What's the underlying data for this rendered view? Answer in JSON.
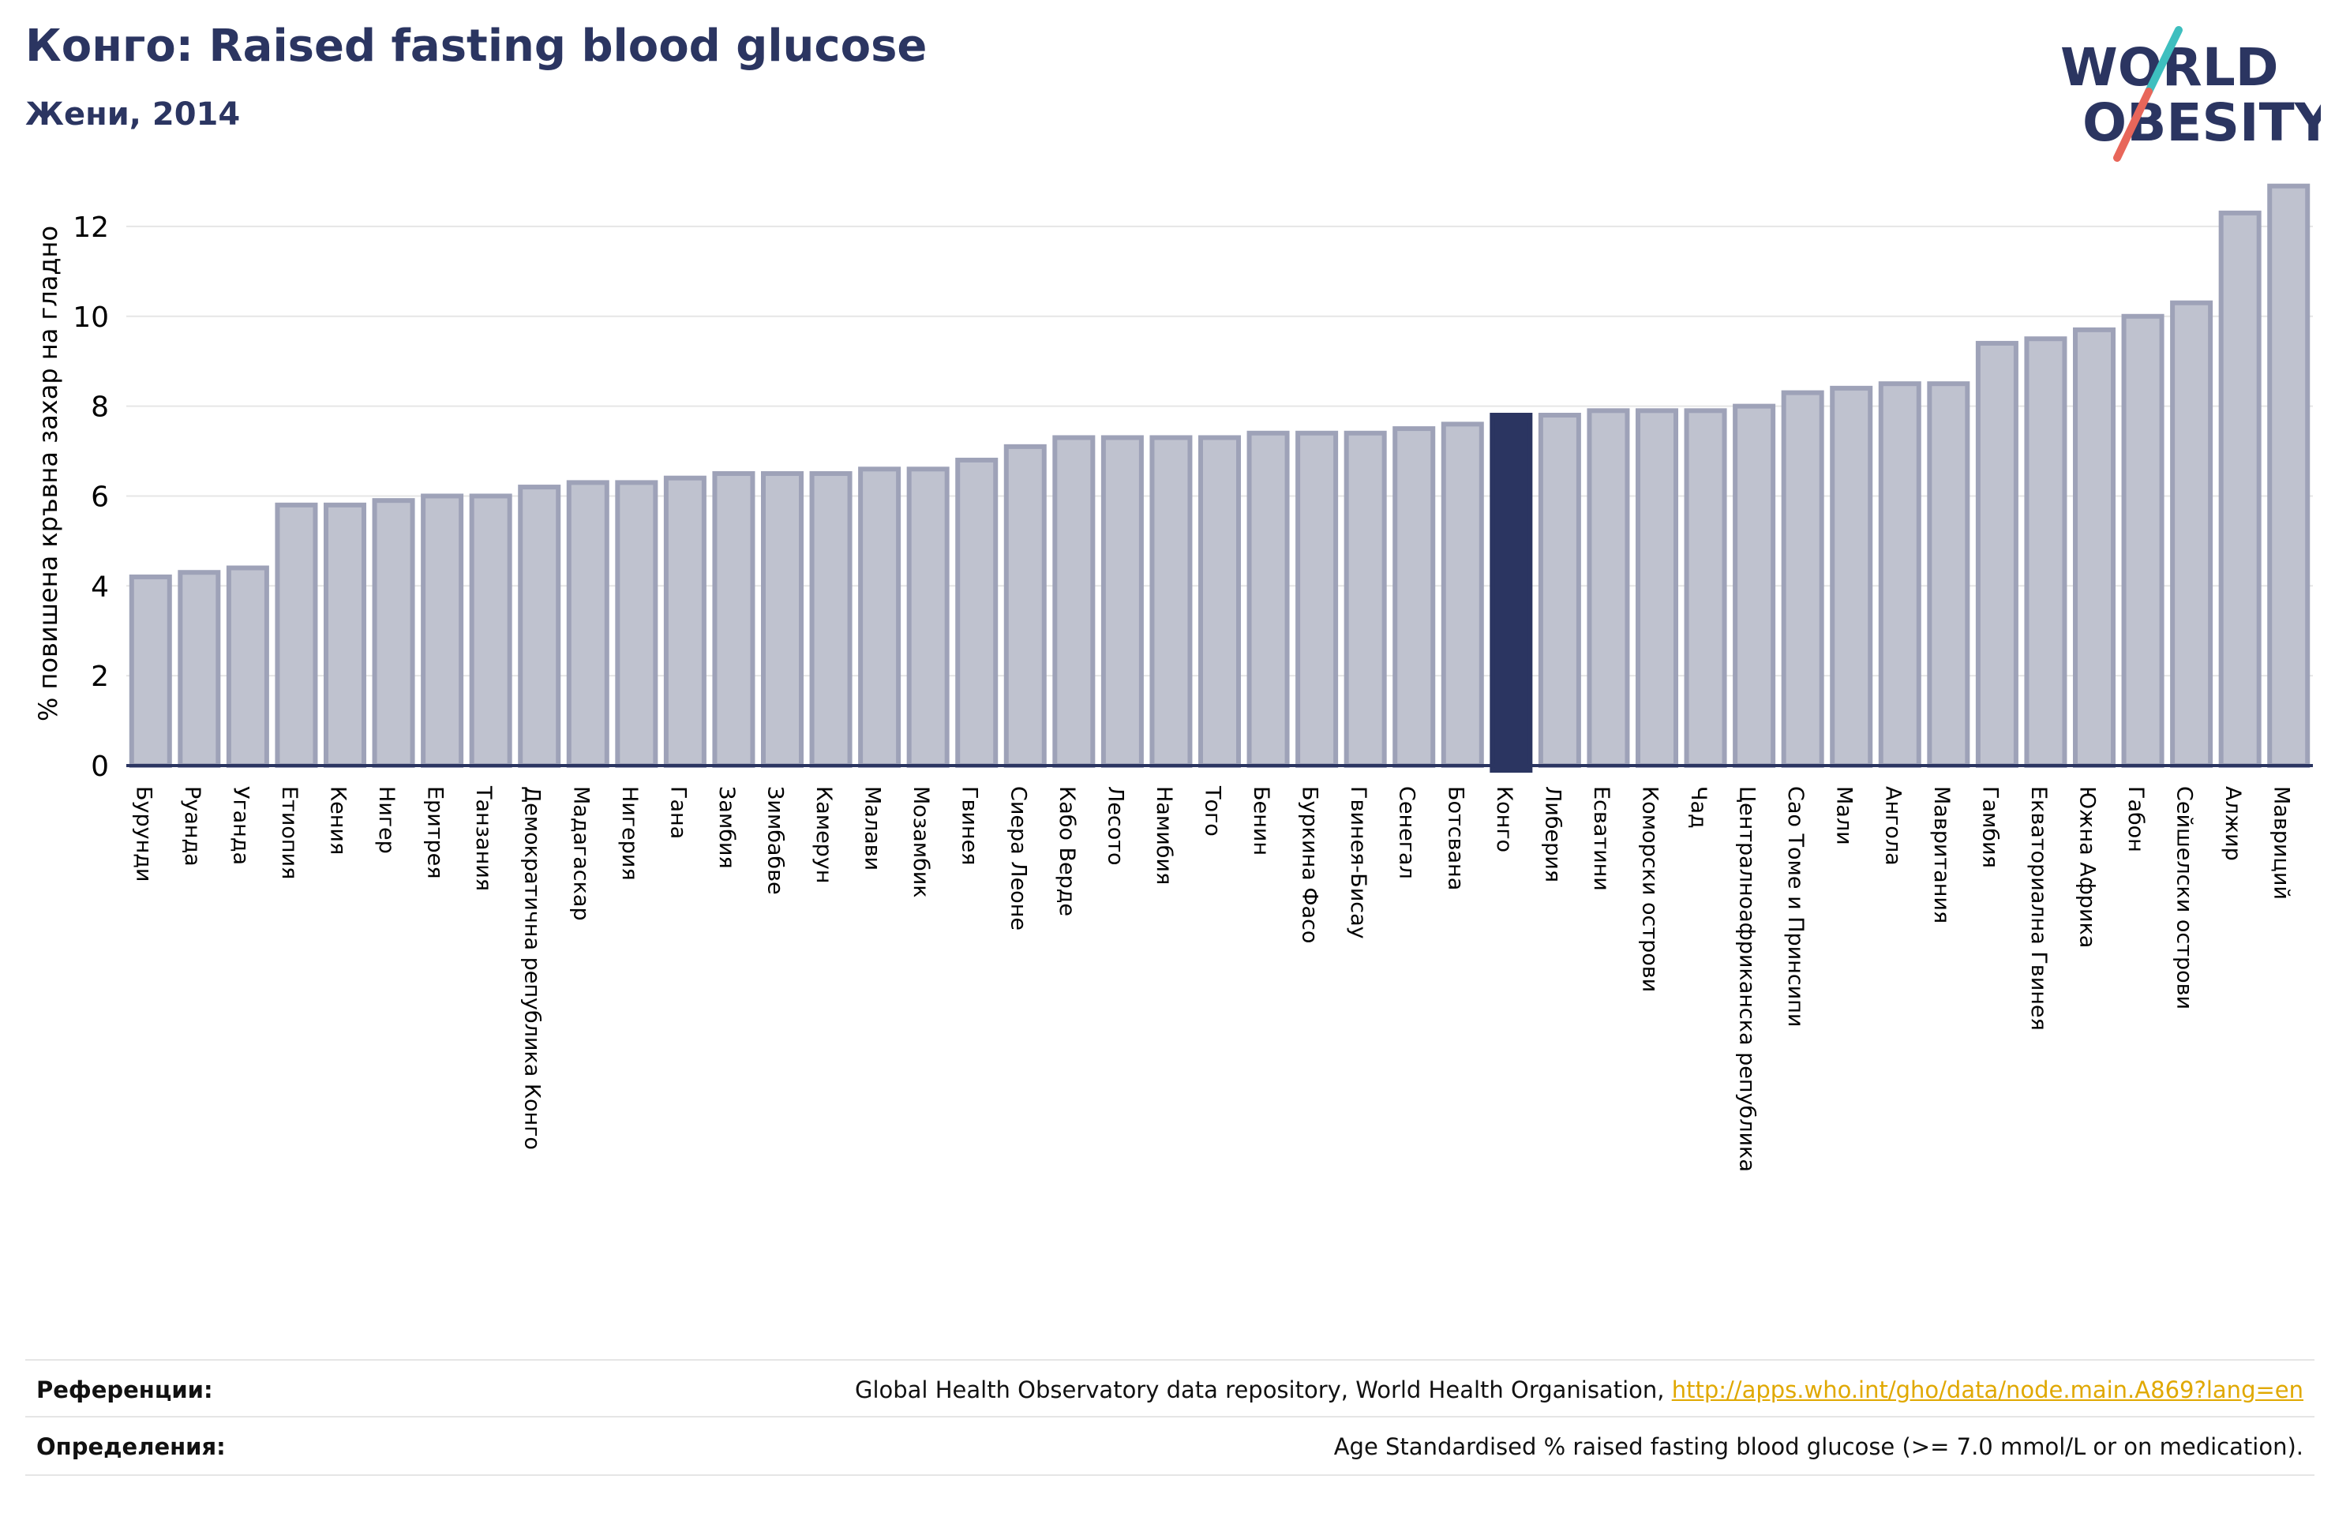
{
  "header": {
    "title": "Конго: Raised fasting blood glucose",
    "subtitle": "Жени, 2014"
  },
  "logo": {
    "line1": "WORLD",
    "line2": "OBESITY",
    "slash_colors": [
      "#3ebfbf",
      "#e8665a"
    ]
  },
  "colors": {
    "bar": "#bfc2cf",
    "bar_border": "#9ea2b8",
    "highlight": "#2b3561",
    "axis": "#2b3561",
    "title": "#2b3561",
    "link": "#e0a800"
  },
  "chart_data": {
    "type": "bar",
    "ylabel": "% повишена кръвна захар на гладно",
    "ylim": [
      0,
      13
    ],
    "yticks": [
      0,
      2,
      4,
      6,
      8,
      10,
      12
    ],
    "grid": true,
    "highlight": "Конго",
    "categories": [
      "Бурунди",
      "Руанда",
      "Уганда",
      "Етиопия",
      "Кения",
      "Нигер",
      "Еритрея",
      "Танзания",
      "Демократична република Конго",
      "Мадагаскар",
      "Нигерия",
      "Гана",
      "Замбия",
      "Зимбабве",
      "Камерун",
      "Малави",
      "Мозамбик",
      "Гвинея",
      "Сиера Леоне",
      "Кабо Верде",
      "Лесото",
      "Намибия",
      "Того",
      "Бенин",
      "Буркина Фасо",
      "Гвинея-Бисау",
      "Сенегал",
      "Ботсвана",
      "Конго",
      "Либерия",
      "Есватини",
      "Коморски острови",
      "Чад",
      "Централноафриканска република",
      "Сао Томе и Принсипи",
      "Мали",
      "Ангола",
      "Мавритания",
      "Гамбия",
      "Екваториална Гвинея",
      "Южна Африка",
      "Габон",
      "Сейшелски острови",
      "Алжир",
      "Мавриций"
    ],
    "values": [
      4.2,
      4.3,
      4.4,
      5.8,
      5.8,
      5.9,
      6.0,
      6.0,
      6.2,
      6.3,
      6.3,
      6.4,
      6.5,
      6.5,
      6.5,
      6.6,
      6.6,
      6.8,
      7.1,
      7.3,
      7.3,
      7.3,
      7.3,
      7.4,
      7.4,
      7.4,
      7.5,
      7.6,
      7.8,
      7.8,
      7.9,
      7.9,
      7.9,
      8.0,
      8.3,
      8.4,
      8.5,
      8.5,
      9.4,
      9.5,
      9.7,
      10.0,
      10.3,
      12.3,
      12.9
    ]
  },
  "footer": {
    "references_label": "Референции:",
    "references_text": "Global Health Observatory data repository, World Health Organisation, ",
    "references_link": "http://apps.who.int/gho/data/node.main.A869?lang=en",
    "definitions_label": "Определения:",
    "definitions_text": "Age Standardised % raised fasting blood glucose (>= 7.0 mmol/L or on medication)."
  }
}
